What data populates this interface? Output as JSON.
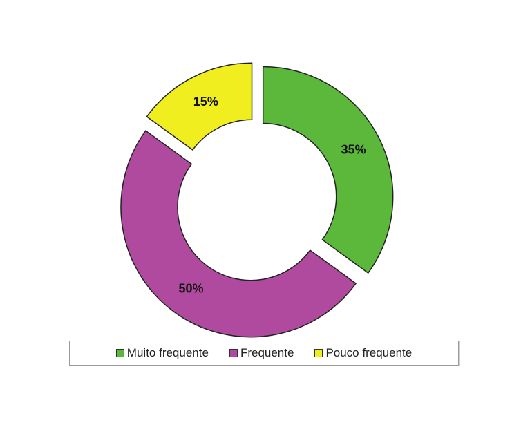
{
  "chart_data": {
    "type": "pie",
    "style": "exploded-donut",
    "title": "",
    "categories": [
      "Muito frequente",
      "Frequente",
      "Pouco frequente"
    ],
    "values": [
      35,
      50,
      15
    ],
    "labels": [
      "35%",
      "50%",
      "15%"
    ],
    "colors": [
      "#5cb83a",
      "#b04a9e",
      "#f0ee1e"
    ],
    "legend_position": "bottom"
  }
}
